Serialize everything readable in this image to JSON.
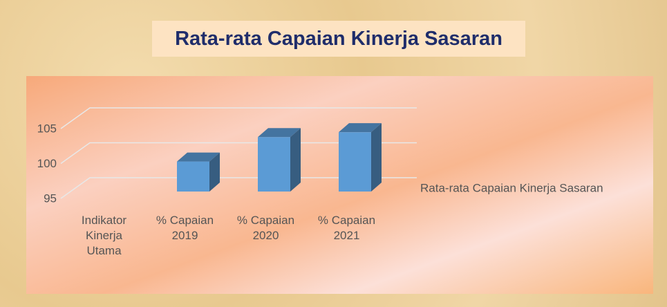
{
  "chart_data": {
    "type": "bar3d",
    "title": "Rata-rata Capaian Kinerja Sasaran",
    "categories": [
      "Indikator Kinerja Utama",
      "% Capaian 2019",
      "% Capaian 2020",
      "% Capaian 2021"
    ],
    "series": [
      {
        "name": "Rata-rata Capaian Kinerja Sasaran",
        "color": "#5b9bd5",
        "values": [
          null,
          99.3,
          102.8,
          103.5
        ]
      }
    ],
    "ylim": [
      95,
      105
    ],
    "yticks": [
      95,
      100,
      105
    ],
    "grid": true,
    "legend": "right"
  }
}
